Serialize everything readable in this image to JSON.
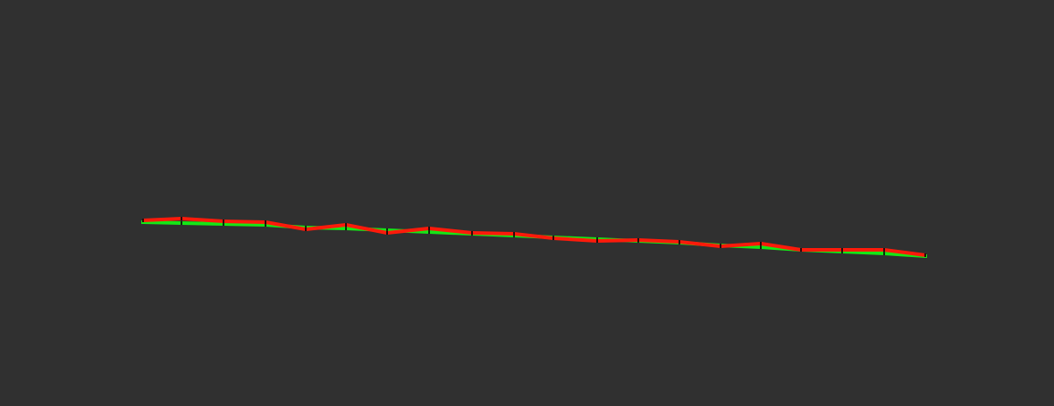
{
  "viewport": {
    "background_color": "#303030"
  },
  "paths": {
    "reference": {
      "color": "#16e616",
      "waypoint_color": "#0a2a0a"
    },
    "planned": {
      "color": "#ff1a0a",
      "waypoint_color": "#2a0a0a"
    }
  }
}
